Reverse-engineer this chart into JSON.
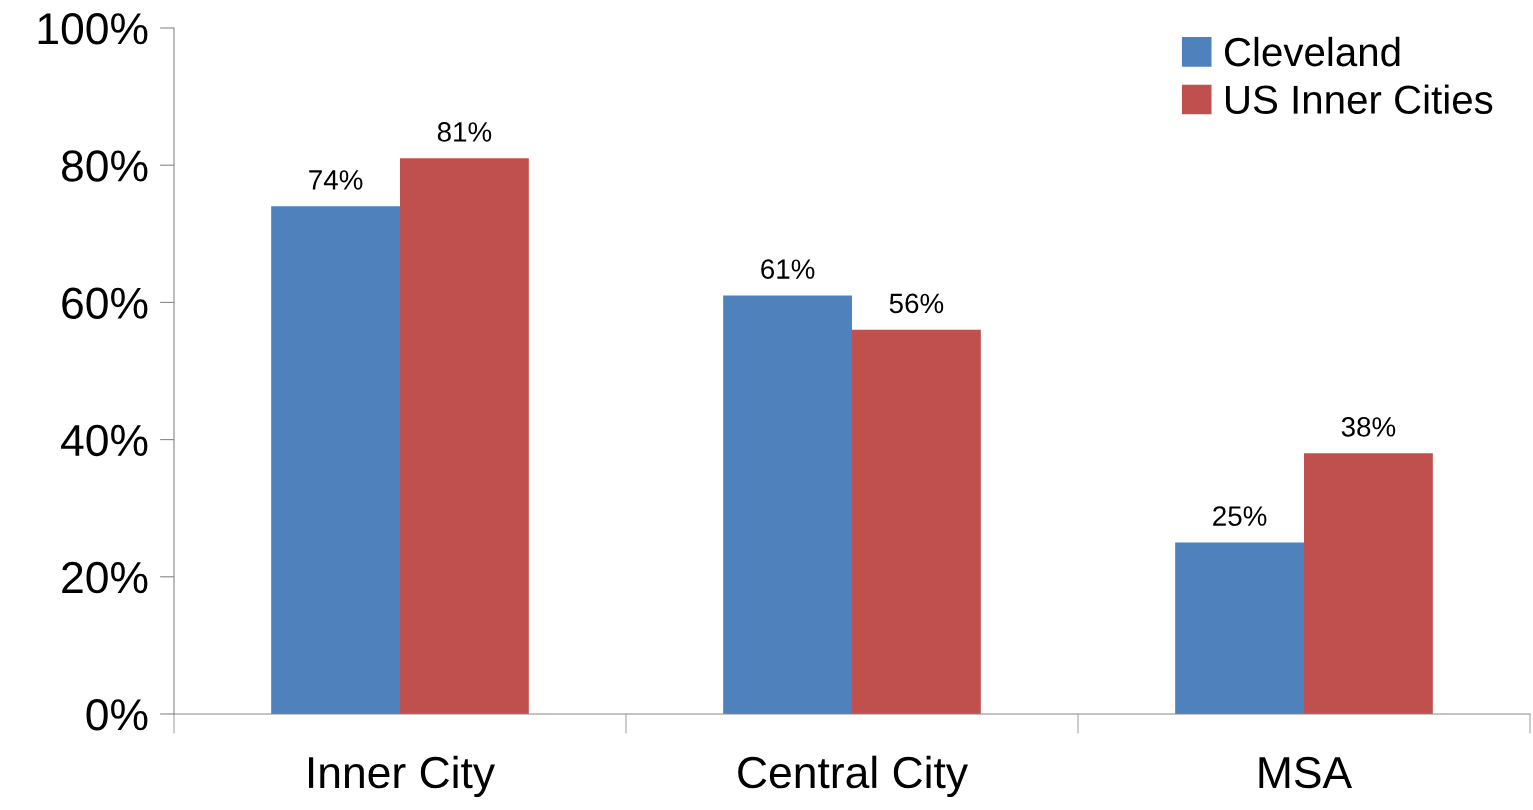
{
  "chart_data": {
    "type": "bar",
    "categories": [
      "Inner City",
      "Central City",
      "MSA"
    ],
    "series": [
      {
        "name": "Cleveland",
        "color": "#4f81bd",
        "values": [
          74,
          61,
          25
        ],
        "value_labels": [
          "74%",
          "61%",
          "25%"
        ]
      },
      {
        "name": "US Inner Cities",
        "color": "#c0504d",
        "values": [
          81,
          56,
          38
        ],
        "value_labels": [
          "81%",
          "56%",
          "38%"
        ]
      }
    ],
    "ylim": [
      0,
      100
    ],
    "yticks": [
      {
        "value": 0,
        "label": "0%"
      },
      {
        "value": 20,
        "label": "20%"
      },
      {
        "value": 40,
        "label": "40%"
      },
      {
        "value": 60,
        "label": "60%"
      },
      {
        "value": 80,
        "label": "80%"
      },
      {
        "value": 100,
        "label": "100%"
      }
    ],
    "legend": "top right"
  }
}
